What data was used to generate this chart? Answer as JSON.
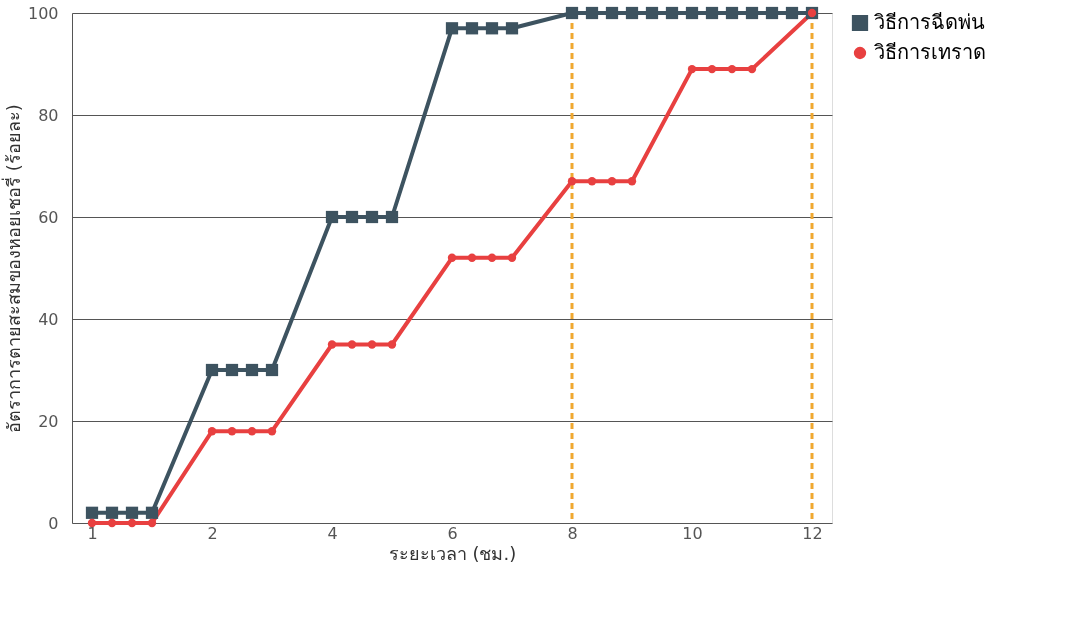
{
  "chart_data": {
    "type": "line",
    "xlabel": "ระยะเวลา (ชม.)",
    "ylabel": "อัตราการตายสะสมของหอยเชอรี่ (ร้อยละ)",
    "categories": [
      "1",
      null,
      null,
      null,
      null,
      null,
      "2",
      null,
      null,
      null,
      null,
      null,
      "4",
      null,
      null,
      null,
      null,
      null,
      "6",
      null,
      null,
      null,
      null,
      null,
      "8",
      null,
      null,
      null,
      null,
      null,
      "10",
      null,
      null,
      null,
      null,
      null,
      "12"
    ],
    "ylim": [
      0,
      100
    ],
    "yticks": [
      0,
      20,
      40,
      60,
      80,
      100
    ],
    "grid": "y",
    "legend": "right",
    "series": [
      {
        "name": "วิธีการฉีดพ่น",
        "color": "#3d5360",
        "marker": "square",
        "values": [
          2,
          2,
          2,
          2,
          null,
          null,
          30,
          30,
          30,
          30,
          null,
          null,
          60,
          60,
          60,
          60,
          null,
          null,
          97,
          97,
          97,
          97,
          null,
          null,
          100,
          100,
          100,
          100,
          100,
          100,
          100,
          100,
          100,
          100,
          100,
          100,
          100
        ]
      },
      {
        "name": "วิธีการเทราด",
        "color": "#e84040",
        "marker": "circle",
        "values": [
          0,
          0,
          0,
          0,
          null,
          null,
          18,
          18,
          18,
          18,
          null,
          null,
          35,
          35,
          35,
          35,
          null,
          null,
          52,
          52,
          52,
          52,
          null,
          null,
          67,
          67,
          67,
          67,
          null,
          null,
          89,
          89,
          89,
          89,
          null,
          null,
          100
        ]
      }
    ],
    "ref_lines": [
      {
        "axis": "x",
        "value": "8",
        "color": "#f0a830",
        "line_style": "dashed"
      },
      {
        "axis": "x",
        "value": "12",
        "color": "#f0a830",
        "line_style": "dashed"
      }
    ]
  }
}
